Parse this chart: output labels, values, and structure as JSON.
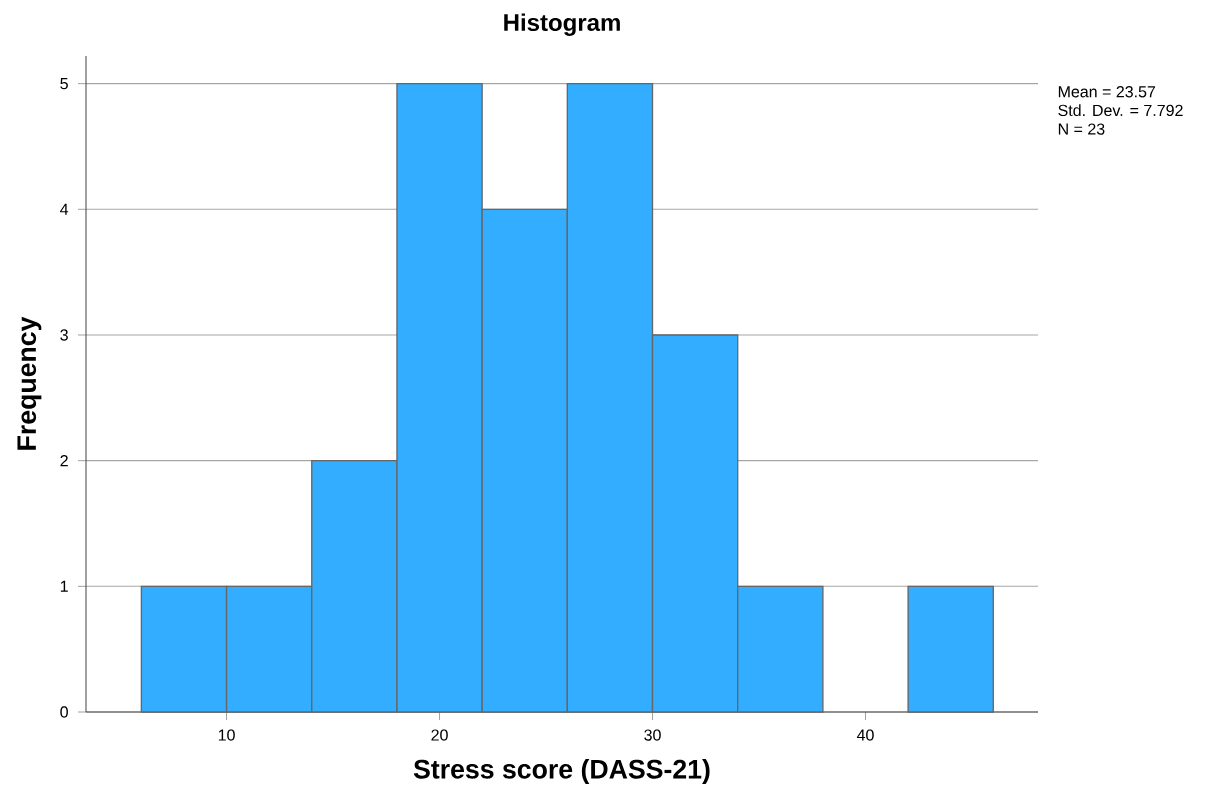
{
  "chart_data": {
    "type": "histogram",
    "title": "Histogram",
    "xlabel": "Stress score (DASS-21)",
    "ylabel": "Frequency",
    "bins": [
      6,
      10,
      14,
      18,
      22,
      26,
      30,
      34,
      38,
      42,
      46
    ],
    "values": [
      1,
      1,
      2,
      5,
      4,
      5,
      3,
      1,
      0,
      1
    ],
    "color": "#33adff",
    "xlim": [
      3.4,
      48.1
    ],
    "ylim": [
      0,
      5.22
    ],
    "xticks": [
      10,
      20,
      30,
      40
    ],
    "yticks": [
      0,
      1,
      2,
      3,
      4,
      5
    ],
    "grid": "y",
    "annotations": [
      "Mean = 23.57",
      "Std. Dev. = 7.792",
      "N = 23"
    ]
  }
}
